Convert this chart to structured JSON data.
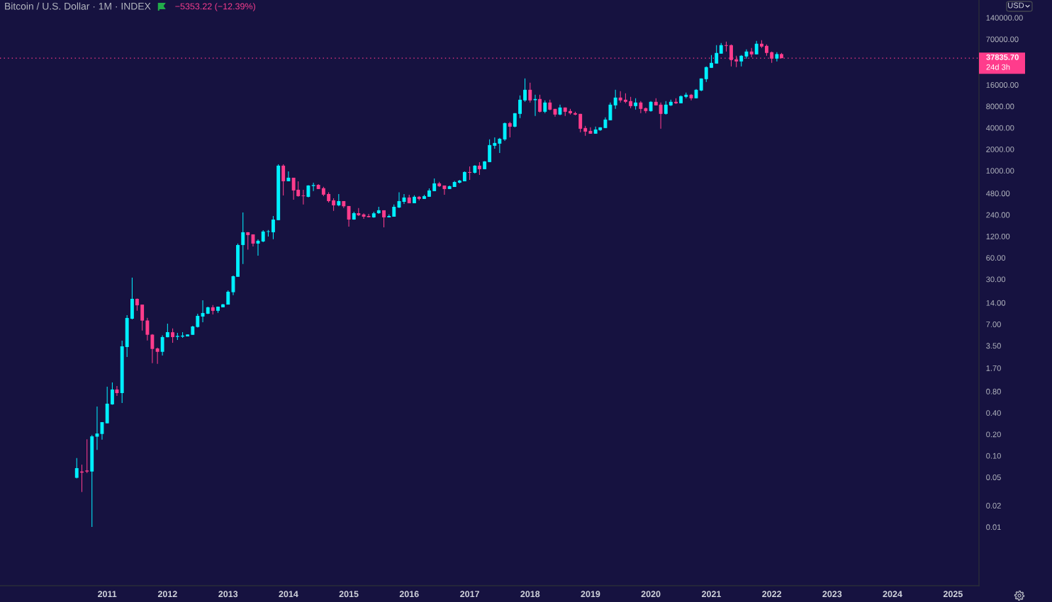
{
  "chart_data": {
    "type": "candlestick",
    "title": "Bitcoin / U.S. Dollar · 1M · INDEX",
    "subtitle": "−5353.22 (−12.39%)",
    "log": true,
    "x": [
      "2010-07",
      "2010-08",
      "2010-09",
      "2010-10",
      "2010-11",
      "2010-12",
      "2011-01",
      "2011-02",
      "2011-03",
      "2011-04",
      "2011-05",
      "2011-06",
      "2011-07",
      "2011-08",
      "2011-09",
      "2011-10",
      "2011-11",
      "2011-12",
      "2012-01",
      "2012-02",
      "2012-03",
      "2012-04",
      "2012-05",
      "2012-06",
      "2012-07",
      "2012-08",
      "2012-09",
      "2012-10",
      "2012-11",
      "2012-12",
      "2013-01",
      "2013-02",
      "2013-03",
      "2013-04",
      "2013-05",
      "2013-06",
      "2013-07",
      "2013-08",
      "2013-09",
      "2013-10",
      "2013-11",
      "2013-12",
      "2014-01",
      "2014-02",
      "2014-03",
      "2014-04",
      "2014-05",
      "2014-06",
      "2014-07",
      "2014-08",
      "2014-09",
      "2014-10",
      "2014-11",
      "2014-12",
      "2015-01",
      "2015-02",
      "2015-03",
      "2015-04",
      "2015-05",
      "2015-06",
      "2015-07",
      "2015-08",
      "2015-09",
      "2015-10",
      "2015-11",
      "2015-12",
      "2016-01",
      "2016-02",
      "2016-03",
      "2016-04",
      "2016-05",
      "2016-06",
      "2016-07",
      "2016-08",
      "2016-09",
      "2016-10",
      "2016-11",
      "2016-12",
      "2017-01",
      "2017-02",
      "2017-03",
      "2017-04",
      "2017-05",
      "2017-06",
      "2017-07",
      "2017-08",
      "2017-09",
      "2017-10",
      "2017-11",
      "2017-12",
      "2018-01",
      "2018-02",
      "2018-03",
      "2018-04",
      "2018-05",
      "2018-06",
      "2018-07",
      "2018-08",
      "2018-09",
      "2018-10",
      "2018-11",
      "2018-12",
      "2019-01",
      "2019-02",
      "2019-03",
      "2019-04",
      "2019-05",
      "2019-06",
      "2019-07",
      "2019-08",
      "2019-09",
      "2019-10",
      "2019-11",
      "2019-12",
      "2020-01",
      "2020-02",
      "2020-03",
      "2020-04",
      "2020-05",
      "2020-06",
      "2020-07",
      "2020-08",
      "2020-09",
      "2020-10",
      "2020-11",
      "2020-12",
      "2021-01",
      "2021-02",
      "2021-03",
      "2021-04",
      "2021-05",
      "2021-06",
      "2021-07",
      "2021-08",
      "2021-09",
      "2021-10",
      "2021-11",
      "2021-12",
      "2022-01",
      "2022-02",
      "2022-03"
    ],
    "ohlc": [
      [
        0.049,
        0.093,
        0.048,
        0.067
      ],
      [
        0.06,
        0.075,
        0.031,
        0.058
      ],
      [
        0.062,
        0.17,
        0.057,
        0.06
      ],
      [
        0.06,
        0.195,
        0.01,
        0.187
      ],
      [
        0.185,
        0.49,
        0.121,
        0.205
      ],
      [
        0.202,
        0.296,
        0.168,
        0.296
      ],
      [
        0.285,
        0.93,
        0.285,
        0.537
      ],
      [
        0.525,
        1.07,
        0.52,
        0.85
      ],
      [
        0.85,
        0.95,
        0.69,
        0.757
      ],
      [
        0.757,
        4.12,
        0.55,
        3.43
      ],
      [
        3.35,
        9.39,
        2.43,
        8.57
      ],
      [
        8.37,
        31.6,
        8.2,
        15.9
      ],
      [
        15.9,
        16.1,
        10.8,
        12.9
      ],
      [
        13.2,
        13.2,
        5.71,
        7.87
      ],
      [
        7.9,
        8.6,
        4.15,
        4.98
      ],
      [
        5.0,
        5.1,
        1.99,
        3.15
      ],
      [
        3.2,
        3.3,
        1.95,
        2.87
      ],
      [
        2.87,
        4.9,
        2.55,
        4.62
      ],
      [
        4.6,
        7.13,
        4.6,
        5.42
      ],
      [
        5.4,
        6.1,
        3.85,
        4.62
      ],
      [
        4.65,
        5.3,
        4.21,
        4.8
      ],
      [
        4.69,
        5.42,
        4.5,
        4.85
      ],
      [
        4.72,
        5.03,
        4.72,
        5.03
      ],
      [
        4.97,
        6.66,
        4.97,
        6.51
      ],
      [
        6.4,
        9.8,
        6.3,
        9.18
      ],
      [
        8.97,
        15.2,
        7.47,
        10.06
      ],
      [
        9.83,
        12.35,
        9.7,
        12.1
      ],
      [
        12.1,
        13.0,
        9.6,
        10.8
      ],
      [
        10.8,
        12.4,
        10.1,
        12.35
      ],
      [
        12.1,
        13.5,
        12.1,
        13.3
      ],
      [
        13.2,
        20.9,
        13.2,
        20.0
      ],
      [
        19.7,
        33.8,
        17.95,
        33.0
      ],
      [
        32.4,
        94.8,
        32.4,
        90.5
      ],
      [
        90.5,
        259,
        49.1,
        136.7
      ],
      [
        136.7,
        137,
        77.7,
        124.7
      ],
      [
        127.6,
        127.6,
        86.5,
        94.8
      ],
      [
        94.8,
        108.7,
        64.2,
        103.8
      ],
      [
        101.5,
        146.5,
        99.1,
        139.9
      ],
      [
        138.5,
        146.6,
        119.1,
        141
      ],
      [
        136.7,
        231,
        109.4,
        206
      ],
      [
        202,
        1230,
        202,
        1175
      ],
      [
        1175,
        1230,
        449,
        710
      ],
      [
        710,
        979,
        710,
        796
      ],
      [
        796,
        796,
        392,
        527
      ],
      [
        540,
        710,
        430,
        439
      ],
      [
        449,
        540,
        334,
        440
      ],
      [
        429,
        626,
        420,
        619
      ],
      [
        609,
        678,
        516,
        628
      ],
      [
        631,
        645,
        552,
        552
      ],
      [
        567,
        595,
        439,
        460
      ],
      [
        470,
        496,
        356,
        374
      ],
      [
        383,
        410,
        272,
        326
      ],
      [
        326,
        470,
        316,
        374
      ],
      [
        374,
        374,
        298,
        316
      ],
      [
        319,
        319,
        164,
        206
      ],
      [
        206,
        265,
        205,
        253
      ],
      [
        253,
        298,
        231,
        237
      ],
      [
        243,
        252,
        211,
        226
      ],
      [
        231,
        248,
        221,
        222.5
      ],
      [
        221,
        265,
        218,
        252
      ],
      [
        253,
        311,
        247,
        278
      ],
      [
        278,
        278,
        160,
        221
      ],
      [
        221,
        243,
        220,
        231
      ],
      [
        226,
        334,
        226,
        311
      ],
      [
        304,
        496,
        298,
        374
      ],
      [
        365,
        470,
        341,
        420
      ],
      [
        420,
        460,
        349,
        349
      ],
      [
        349,
        450,
        349,
        430
      ],
      [
        430,
        440,
        383,
        401
      ],
      [
        401,
        460,
        401,
        439
      ],
      [
        430,
        565,
        430,
        527
      ],
      [
        516,
        778,
        516,
        663
      ],
      [
        663,
        695,
        590,
        605
      ],
      [
        619,
        619,
        460,
        552
      ],
      [
        552,
        619,
        550,
        605
      ],
      [
        590,
        717,
        590,
        693
      ],
      [
        678,
        740,
        663,
        726
      ],
      [
        709,
        979,
        709,
        957
      ],
      [
        957,
        1149,
        743,
        934
      ],
      [
        934,
        1193,
        912,
        1175
      ],
      [
        1175,
        1318,
        873,
        1048
      ],
      [
        1048,
        1360,
        1048,
        1349
      ],
      [
        1318,
        2742,
        1318,
        2284
      ],
      [
        2233,
        2936,
        2035,
        2446
      ],
      [
        2391,
        2871,
        1774,
        2803
      ],
      [
        2742,
        4745,
        2608,
        4639
      ],
      [
        4639,
        4854,
        2936,
        4140
      ],
      [
        4140,
        6400,
        4050,
        6400
      ],
      [
        6260,
        11350,
        5460,
        9890
      ],
      [
        9670,
        19660,
        9240,
        13630
      ],
      [
        13630,
        17140,
        9030,
        9670
      ],
      [
        9740,
        11610,
        5840,
        10120
      ],
      [
        10120,
        11610,
        6550,
        6700
      ],
      [
        6700,
        9670,
        6400,
        9030
      ],
      [
        9030,
        9890,
        7020,
        7180
      ],
      [
        7350,
        7350,
        5710,
        6120
      ],
      [
        6120,
        8430,
        5980,
        7690
      ],
      [
        7690,
        7690,
        5840,
        6700
      ],
      [
        6860,
        7350,
        6120,
        6400
      ],
      [
        6400,
        6700,
        5980,
        6120
      ],
      [
        6260,
        6260,
        3450,
        3870
      ],
      [
        3960,
        4240,
        3080,
        3530
      ],
      [
        3610,
        4050,
        3300,
        3300
      ],
      [
        3300,
        4150,
        3300,
        3780
      ],
      [
        3700,
        4050,
        3610,
        4050
      ],
      [
        3960,
        5580,
        3960,
        5210
      ],
      [
        5090,
        9030,
        5090,
        8430
      ],
      [
        8240,
        13630,
        7350,
        10600
      ],
      [
        10600,
        13020,
        9030,
        9670
      ],
      [
        9890,
        12160,
        8820,
        9240
      ],
      [
        9450,
        10840,
        7520,
        8050
      ],
      [
        8050,
        10360,
        7180,
        9030
      ],
      [
        9030,
        9450,
        6400,
        7350
      ],
      [
        7520,
        7690,
        6400,
        6860
      ],
      [
        6860,
        9450,
        6700,
        9240
      ],
      [
        9240,
        10360,
        8240,
        8240
      ],
      [
        8430,
        9030,
        3870,
        6260
      ],
      [
        6260,
        9450,
        6120,
        8430
      ],
      [
        8240,
        9890,
        8050,
        9240
      ],
      [
        9240,
        10360,
        8620,
        8820
      ],
      [
        8820,
        11350,
        8820,
        11090
      ],
      [
        10840,
        12440,
        10360,
        11610
      ],
      [
        11610,
        11880,
        9670,
        10360
      ],
      [
        10360,
        13950,
        10360,
        13630
      ],
      [
        13320,
        19660,
        13020,
        19660
      ],
      [
        19210,
        29010,
        17530,
        28360
      ],
      [
        27710,
        41840,
        27710,
        32530
      ],
      [
        31800,
        57650,
        31800,
        44820
      ],
      [
        43810,
        61750,
        43810,
        57650
      ],
      [
        57650,
        64640,
        46920,
        56350
      ],
      [
        57650,
        58990,
        29010,
        35650
      ],
      [
        36480,
        40900,
        28360,
        34060
      ],
      [
        34060,
        41840,
        29010,
        40900
      ],
      [
        39970,
        50250,
        37320,
        46920
      ],
      [
        46920,
        52610,
        39070,
        42810
      ],
      [
        42810,
        66140,
        42810,
        60350
      ],
      [
        60350,
        67680,
        52610,
        55080
      ],
      [
        56350,
        58990,
        40900,
        44820
      ],
      [
        45860,
        46920,
        32530,
        37320
      ],
      [
        37320,
        45860,
        34060,
        43190
      ],
      [
        43190,
        44820,
        37835.7,
        37835.7
      ]
    ],
    "colors": [
      "#00f0ff",
      "#ff3c8c",
      "#ff3c8c",
      "#00f0ff",
      "#00f0ff",
      "#00f0ff",
      "#00f0ff",
      "#00f0ff",
      "#ff3c8c",
      "#00f0ff",
      "#00f0ff",
      "#00f0ff",
      "#ff3c8c",
      "#ff3c8c",
      "#ff3c8c",
      "#ff3c8c",
      "#ff3c8c",
      "#00f0ff",
      "#00f0ff",
      "#ff3c8c",
      "#00f0ff",
      "#00f0ff",
      "#00f0ff",
      "#00f0ff",
      "#00f0ff",
      "#00f0ff",
      "#00f0ff",
      "#ff3c8c",
      "#00f0ff",
      "#00f0ff",
      "#00f0ff",
      "#00f0ff",
      "#00f0ff",
      "#00f0ff",
      "#ff3c8c",
      "#ff3c8c",
      "#00f0ff",
      "#00f0ff",
      "#00f0ff",
      "#00f0ff",
      "#00f0ff",
      "#ff3c8c",
      "#00f0ff",
      "#ff3c8c",
      "#ff3c8c",
      "#ff3c8c",
      "#00f0ff",
      "#00f0ff",
      "#ff3c8c",
      "#ff3c8c",
      "#ff3c8c",
      "#ff3c8c",
      "#00f0ff",
      "#ff3c8c",
      "#ff3c8c",
      "#00f0ff",
      "#ff3c8c",
      "#ff3c8c",
      "#ff3c8c",
      "#00f0ff",
      "#00f0ff",
      "#ff3c8c",
      "#00f0ff",
      "#00f0ff",
      "#00f0ff",
      "#00f0ff",
      "#ff3c8c",
      "#00f0ff",
      "#ff3c8c",
      "#00f0ff",
      "#00f0ff",
      "#00f0ff",
      "#ff3c8c",
      "#ff3c8c",
      "#00f0ff",
      "#00f0ff",
      "#00f0ff",
      "#00f0ff",
      "#ff3c8c",
      "#00f0ff",
      "#ff3c8c",
      "#00f0ff",
      "#00f0ff",
      "#00f0ff",
      "#00f0ff",
      "#00f0ff",
      "#ff3c8c",
      "#00f0ff",
      "#00f0ff",
      "#00f0ff",
      "#ff3c8c",
      "#00f0ff",
      "#ff3c8c",
      "#00f0ff",
      "#ff3c8c",
      "#ff3c8c",
      "#00f0ff",
      "#ff3c8c",
      "#ff3c8c",
      "#ff3c8c",
      "#ff3c8c",
      "#ff3c8c",
      "#ff3c8c",
      "#00f0ff",
      "#00f0ff",
      "#00f0ff",
      "#00f0ff",
      "#00f0ff",
      "#ff3c8c",
      "#ff3c8c",
      "#ff3c8c",
      "#00f0ff",
      "#ff3c8c",
      "#ff3c8c",
      "#00f0ff",
      "#ff3c8c",
      "#ff3c8c",
      "#00f0ff",
      "#00f0ff",
      "#ff3c8c",
      "#00f0ff",
      "#00f0ff",
      "#ff3c8c",
      "#00f0ff",
      "#00f0ff",
      "#00f0ff",
      "#00f0ff",
      "#00f0ff",
      "#00f0ff",
      "#ff3c8c",
      "#ff3c8c",
      "#ff3c8c",
      "#00f0ff",
      "#00f0ff",
      "#ff3c8c",
      "#00f0ff",
      "#ff3c8c",
      "#ff3c8c",
      "#ff3c8c",
      "#00f0ff",
      "#ff3c8c"
    ],
    "xlim": [
      "2009-03-24",
      "2025-06-07"
    ],
    "xticks": [
      "2011",
      "2012",
      "2013",
      "2014",
      "2015",
      "2016",
      "2017",
      "2018",
      "2019",
      "2020",
      "2021",
      "2022",
      "2023",
      "2024",
      "2025"
    ],
    "ylim": [
      0.0015,
      248000
    ],
    "yticks": [
      0.01,
      0.02,
      0.05,
      {
        "value": 0.1,
        "label": "0.10"
      },
      {
        "value": 0.2,
        "label": "0.20"
      },
      {
        "value": 0.4,
        "label": "0.40"
      },
      {
        "value": 0.8,
        "label": "0.80"
      },
      {
        "value": 1.7,
        "label": "1.70"
      },
      {
        "value": 3.5,
        "label": "3.50"
      },
      {
        "value": 7,
        "label": "7.00"
      },
      {
        "value": 14,
        "label": "14.00"
      },
      {
        "value": 30,
        "label": "30.00"
      },
      {
        "value": 60,
        "label": "60.00"
      },
      {
        "value": 120,
        "label": "120.00"
      },
      {
        "value": 240,
        "label": "240.00"
      },
      {
        "value": 480,
        "label": "480.00"
      },
      {
        "value": 1000,
        "label": "1000.00"
      },
      {
        "value": 2000,
        "label": "2000.00"
      },
      {
        "value": 4000,
        "label": "4000.00"
      },
      {
        "value": 8000,
        "label": "8000.00"
      },
      {
        "value": 16000,
        "label": "16000.00"
      },
      {
        "value": 70000,
        "label": "70000.00"
      },
      {
        "value": 140000,
        "label": "140000.00"
      }
    ],
    "ref_lines": [
      {
        "axis": "y",
        "value": 37835.7,
        "label": "37835.70",
        "color": "#ff3c8c",
        "line_style": "dotted"
      }
    ],
    "annotations": [
      "24d 3h",
      "USD"
    ]
  }
}
